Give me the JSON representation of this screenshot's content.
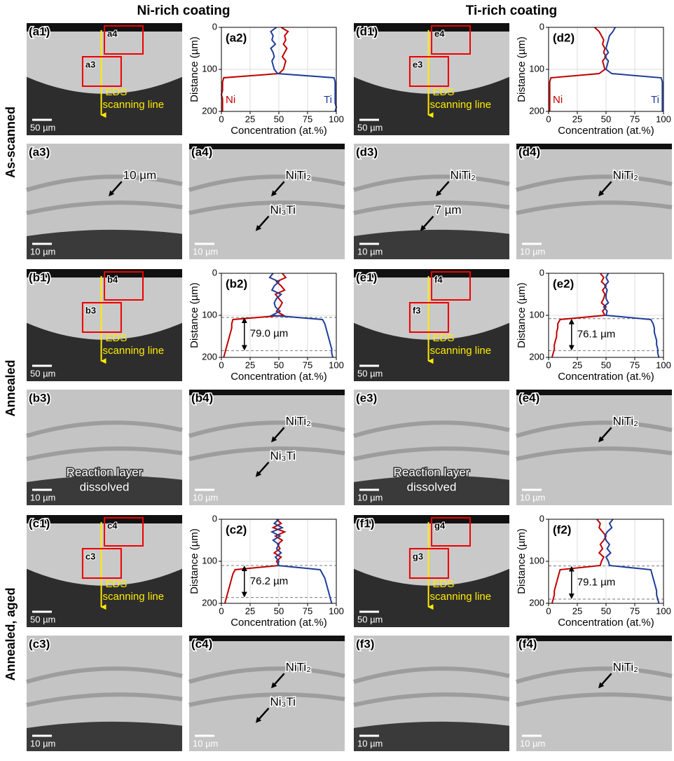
{
  "headers": [
    "Ni-rich coating",
    "Ti-rich coating"
  ],
  "row_groups": [
    "As-scanned",
    "Annealed",
    "Annealed, aged"
  ],
  "micrographs": [
    {
      "label": "(a1)",
      "scale": "50 µm",
      "boxes": [
        "a4",
        "a3"
      ],
      "eds": [
        "EDS",
        "scanning line"
      ]
    },
    {
      "label": "(d1)",
      "scale": "50 µm",
      "boxes": [
        "e4",
        "e3"
      ],
      "eds": [
        "EDS",
        "scanning line"
      ]
    },
    {
      "label": "(a3)",
      "scale": "10 µm",
      "notes": [
        "10 µm"
      ]
    },
    {
      "label": "(a4)",
      "scale": "10 µm",
      "notes": [
        "NiTi₂",
        "Ni₃Ti"
      ]
    },
    {
      "label": "(d3)",
      "scale": "10 µm",
      "notes": [
        "NiTi₂",
        "7 µm"
      ]
    },
    {
      "label": "(d4)",
      "scale": "10 µm",
      "notes": [
        "NiTi₂"
      ]
    },
    {
      "label": "(b1)",
      "scale": "50 µm",
      "boxes": [
        "b4",
        "b3"
      ],
      "eds": [
        "EDS",
        "scanning line"
      ]
    },
    {
      "label": "(e1)",
      "scale": "50 µm",
      "boxes": [
        "f4",
        "f3"
      ],
      "eds": [
        "EDS",
        "scanning line"
      ]
    },
    {
      "label": "(b3)",
      "scale": "10 µm",
      "notes": [
        "Reaction layer",
        "dissolved"
      ]
    },
    {
      "label": "(b4)",
      "scale": "10 µm",
      "notes": [
        "NiTi₂",
        "Ni₃Ti"
      ]
    },
    {
      "label": "(e3)",
      "scale": "10 µm",
      "notes": [
        "Reaction layer",
        "dissolved"
      ]
    },
    {
      "label": "(e4)",
      "scale": "10 µm",
      "notes": [
        "NiTi₂"
      ]
    },
    {
      "label": "(c1)",
      "scale": "50 µm",
      "boxes": [
        "c4",
        "c3"
      ],
      "eds": [
        "EDS",
        "scanning line"
      ]
    },
    {
      "label": "(f1)",
      "scale": "50 µm",
      "boxes": [
        "g4",
        "g3"
      ],
      "eds": [
        "EDS",
        "scanning line"
      ]
    },
    {
      "label": "(c3)",
      "scale": "10 µm"
    },
    {
      "label": "(c4)",
      "scale": "10 µm",
      "notes": [
        "NiTi₂",
        "Ni₃Ti"
      ]
    },
    {
      "label": "(f3)",
      "scale": "10 µm"
    },
    {
      "label": "(f4)",
      "scale": "10 µm",
      "notes": [
        "NiTi₂"
      ]
    }
  ],
  "chart_data": [
    {
      "type": "line",
      "label": "(a2)",
      "xlabel": "Concentration (at.%)",
      "ylabel": "Distance (µm)",
      "xlim": [
        0,
        100
      ],
      "xticks": [
        0,
        25,
        50,
        75,
        100
      ],
      "ylim": [
        0,
        200
      ],
      "yticks": [
        0,
        100,
        200
      ],
      "y_inverted": true,
      "grid": true,
      "y": [
        0,
        10,
        20,
        30,
        40,
        50,
        60,
        70,
        80,
        90,
        100,
        110,
        120,
        130,
        140,
        150,
        160,
        170,
        180,
        190,
        200
      ],
      "series": [
        {
          "name": "Ni",
          "color": "#c00000",
          "values": [
            52,
            58,
            55,
            56,
            54,
            57,
            55,
            53,
            56,
            55,
            54,
            50,
            2,
            1,
            1,
            1,
            0,
            1,
            1,
            1,
            1
          ]
        },
        {
          "name": "Ti",
          "color": "#1f3d99",
          "values": [
            48,
            43,
            45,
            44,
            47,
            43,
            45,
            46,
            44,
            45,
            46,
            49,
            98,
            99,
            99,
            99,
            99,
            99,
            99,
            100,
            99
          ]
        }
      ]
    },
    {
      "type": "line",
      "label": "(d2)",
      "xlabel": "Concentration (at.%)",
      "ylabel": "Distance (µm)",
      "xlim": [
        0,
        100
      ],
      "xticks": [
        0,
        25,
        50,
        75,
        100
      ],
      "ylim": [
        0,
        200
      ],
      "yticks": [
        0,
        100,
        200
      ],
      "y_inverted": true,
      "grid": true,
      "y": [
        0,
        10,
        20,
        30,
        40,
        50,
        60,
        70,
        80,
        90,
        100,
        110,
        120,
        130,
        140,
        150,
        160,
        170,
        180,
        190,
        200
      ],
      "series": [
        {
          "name": "Ni",
          "color": "#c00000",
          "values": [
            40,
            44,
            46,
            48,
            47,
            49,
            48,
            50,
            47,
            48,
            49,
            44,
            2,
            1,
            1,
            1,
            1,
            1,
            1,
            1,
            1
          ]
        },
        {
          "name": "Ti",
          "color": "#1f3d99",
          "values": [
            58,
            56,
            53,
            52,
            51,
            50,
            52,
            49,
            52,
            51,
            50,
            55,
            98,
            99,
            99,
            99,
            99,
            99,
            99,
            99,
            99
          ]
        }
      ]
    },
    {
      "type": "line",
      "label": "(b2)",
      "xlabel": "Concentration (at.%)",
      "ylabel": "Distance (µm)",
      "xlim": [
        0,
        100
      ],
      "xticks": [
        0,
        25,
        50,
        75,
        100
      ],
      "ylim": [
        0,
        200
      ],
      "yticks": [
        0,
        100,
        200
      ],
      "y_inverted": true,
      "grid": true,
      "y": [
        0,
        10,
        20,
        30,
        40,
        50,
        60,
        70,
        80,
        90,
        100,
        110,
        120,
        130,
        140,
        150,
        160,
        170,
        180,
        190,
        200
      ],
      "series": [
        {
          "color": "#c00000",
          "values": [
            53,
            56,
            48,
            52,
            55,
            47,
            50,
            53,
            51,
            48,
            54,
            10,
            9,
            9,
            8,
            7,
            6,
            5,
            4,
            3,
            2
          ]
        },
        {
          "color": "#1f3d99",
          "values": [
            45,
            42,
            50,
            46,
            44,
            52,
            48,
            46,
            47,
            51,
            44,
            88,
            90,
            91,
            92,
            93,
            94,
            95,
            96,
            96,
            97
          ]
        }
      ],
      "measure": {
        "label": "79.0 µm",
        "from": 105,
        "to": 184
      }
    },
    {
      "type": "line",
      "label": "(e2)",
      "xlabel": "Concentration (at.%)",
      "ylabel": "Distance (µm)",
      "xlim": [
        0,
        100
      ],
      "xticks": [
        0,
        25,
        50,
        75,
        100
      ],
      "ylim": [
        0,
        200
      ],
      "yticks": [
        0,
        100,
        200
      ],
      "y_inverted": true,
      "grid": true,
      "y": [
        0,
        10,
        20,
        30,
        40,
        50,
        60,
        70,
        80,
        90,
        100,
        110,
        120,
        130,
        140,
        150,
        160,
        170,
        180,
        190,
        200
      ],
      "series": [
        {
          "color": "#c00000",
          "values": [
            45,
            48,
            46,
            50,
            47,
            49,
            48,
            46,
            50,
            47,
            49,
            10,
            8,
            8,
            7,
            7,
            6,
            5,
            5,
            4,
            3
          ]
        },
        {
          "color": "#1f3d99",
          "values": [
            52,
            50,
            52,
            49,
            51,
            50,
            50,
            52,
            48,
            51,
            50,
            89,
            91,
            92,
            92,
            93,
            94,
            94,
            95,
            95,
            96
          ]
        }
      ],
      "measure": {
        "label": "76.1 µm",
        "from": 108,
        "to": 184
      }
    },
    {
      "type": "line",
      "label": "(c2)",
      "xlabel": "Concentration (at.%)",
      "ylabel": "Distance (µm)",
      "xlim": [
        0,
        100
      ],
      "xticks": [
        0,
        25,
        50,
        75,
        100
      ],
      "ylim": [
        0,
        200
      ],
      "yticks": [
        0,
        100,
        200
      ],
      "y_inverted": true,
      "grid": true,
      "y": [
        0,
        10,
        20,
        30,
        40,
        50,
        60,
        70,
        80,
        90,
        100,
        110,
        120,
        130,
        140,
        150,
        160,
        170,
        180,
        190,
        200
      ],
      "series": [
        {
          "color": "#c00000",
          "values": [
            48,
            52,
            45,
            55,
            47,
            53,
            49,
            51,
            46,
            52,
            48,
            50,
            12,
            10,
            9,
            8,
            7,
            6,
            5,
            4,
            3
          ]
        },
        {
          "color": "#1f3d99",
          "values": [
            50,
            46,
            53,
            44,
            51,
            45,
            50,
            48,
            52,
            47,
            50,
            49,
            86,
            88,
            90,
            91,
            92,
            93,
            94,
            95,
            96
          ]
        }
      ],
      "measure": {
        "label": "76.2 µm",
        "from": 110,
        "to": 186
      }
    },
    {
      "type": "line",
      "label": "(f2)",
      "xlabel": "Concentration (at.%)",
      "ylabel": "Distance (µm)",
      "xlim": [
        0,
        100
      ],
      "xticks": [
        0,
        25,
        50,
        75,
        100
      ],
      "ylim": [
        0,
        200
      ],
      "yticks": [
        0,
        100,
        200
      ],
      "y_inverted": true,
      "grid": true,
      "y": [
        0,
        10,
        20,
        30,
        40,
        50,
        60,
        70,
        80,
        90,
        100,
        110,
        120,
        130,
        140,
        150,
        160,
        170,
        180,
        190,
        200
      ],
      "series": [
        {
          "color": "#c00000",
          "values": [
            42,
            45,
            44,
            47,
            50,
            48,
            45,
            47,
            44,
            48,
            46,
            45,
            10,
            9,
            8,
            7,
            6,
            5,
            5,
            4,
            3
          ]
        },
        {
          "color": "#1f3d99",
          "values": [
            56,
            53,
            55,
            51,
            49,
            50,
            53,
            51,
            54,
            50,
            52,
            53,
            89,
            90,
            91,
            92,
            93,
            94,
            94,
            95,
            96
          ]
        }
      ],
      "measure": {
        "label": "79.1 µm",
        "from": 111,
        "to": 190
      }
    }
  ]
}
